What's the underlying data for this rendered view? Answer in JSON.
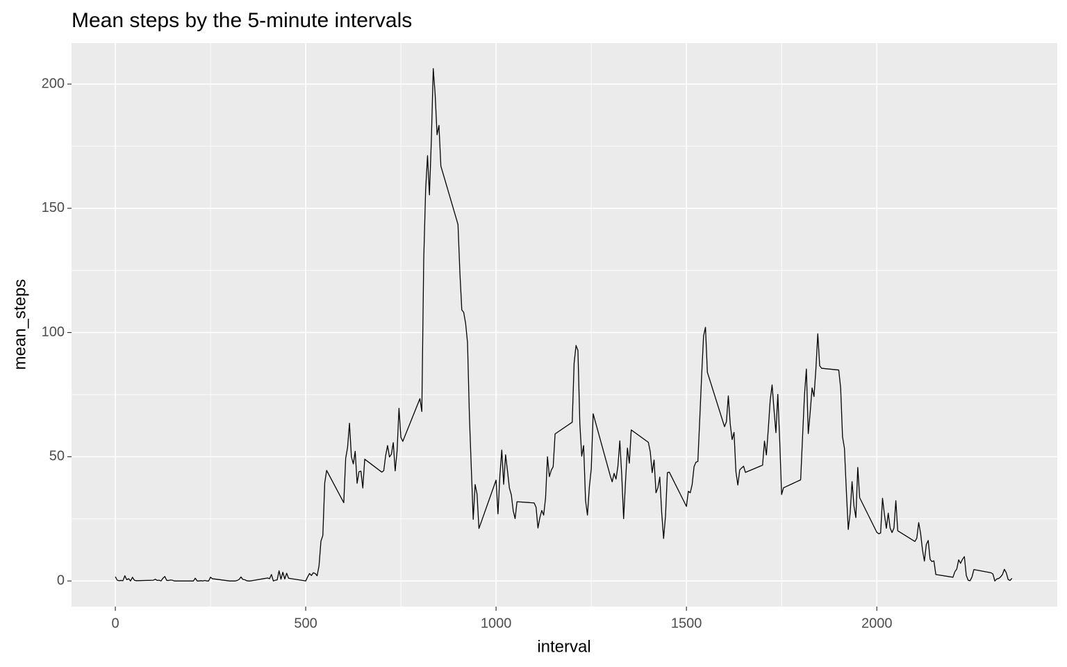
{
  "chart_data": {
    "type": "line",
    "title": "Mean steps by the 5-minute intervals",
    "x_label": "interval",
    "y_label": "mean_steps",
    "xlim": [
      -115,
      2474
    ],
    "ylim": [
      -10.3,
      216.5
    ],
    "xticks": [
      0,
      500,
      1000,
      1500,
      2000
    ],
    "yticks": [
      0,
      50,
      100,
      150,
      200
    ],
    "grid": true,
    "minor_grid": true,
    "series": [
      {
        "name": "mean_steps",
        "color": "#000000",
        "x": [
          0,
          5,
          10,
          15,
          20,
          25,
          30,
          35,
          40,
          45,
          50,
          55,
          100,
          105,
          110,
          115,
          120,
          125,
          130,
          135,
          140,
          145,
          150,
          155,
          200,
          205,
          210,
          215,
          220,
          225,
          230,
          235,
          240,
          245,
          250,
          255,
          300,
          305,
          310,
          315,
          320,
          325,
          330,
          335,
          340,
          345,
          350,
          355,
          400,
          405,
          410,
          415,
          420,
          425,
          430,
          435,
          440,
          445,
          450,
          455,
          500,
          505,
          510,
          515,
          520,
          525,
          530,
          535,
          540,
          545,
          550,
          555,
          600,
          605,
          610,
          615,
          620,
          625,
          630,
          635,
          640,
          645,
          650,
          655,
          700,
          705,
          710,
          715,
          720,
          725,
          730,
          735,
          740,
          745,
          750,
          755,
          800,
          805,
          810,
          815,
          820,
          825,
          830,
          835,
          840,
          845,
          850,
          855,
          900,
          905,
          910,
          915,
          920,
          925,
          930,
          935,
          940,
          945,
          950,
          955,
          1000,
          1005,
          1010,
          1015,
          1020,
          1025,
          1030,
          1035,
          1040,
          1045,
          1050,
          1055,
          1100,
          1105,
          1110,
          1115,
          1120,
          1125,
          1130,
          1135,
          1140,
          1145,
          1150,
          1155,
          1200,
          1205,
          1210,
          1215,
          1220,
          1225,
          1230,
          1235,
          1240,
          1245,
          1250,
          1255,
          1300,
          1305,
          1310,
          1315,
          1320,
          1325,
          1330,
          1335,
          1340,
          1345,
          1350,
          1355,
          1400,
          1405,
          1410,
          1415,
          1420,
          1425,
          1430,
          1435,
          1440,
          1445,
          1450,
          1455,
          1500,
          1505,
          1510,
          1515,
          1520,
          1525,
          1530,
          1535,
          1540,
          1545,
          1550,
          1555,
          1600,
          1605,
          1610,
          1615,
          1620,
          1625,
          1630,
          1635,
          1640,
          1645,
          1650,
          1655,
          1700,
          1705,
          1710,
          1715,
          1720,
          1725,
          1730,
          1735,
          1740,
          1745,
          1750,
          1755,
          1800,
          1805,
          1810,
          1815,
          1820,
          1825,
          1830,
          1835,
          1840,
          1845,
          1850,
          1855,
          1900,
          1905,
          1910,
          1915,
          1920,
          1925,
          1930,
          1935,
          1940,
          1945,
          1950,
          1955,
          2000,
          2005,
          2010,
          2015,
          2020,
          2025,
          2030,
          2035,
          2040,
          2045,
          2050,
          2055,
          2100,
          2105,
          2110,
          2115,
          2120,
          2125,
          2130,
          2135,
          2140,
          2145,
          2150,
          2155,
          2200,
          2205,
          2210,
          2215,
          2220,
          2225,
          2230,
          2235,
          2240,
          2245,
          2250,
          2255,
          2300,
          2305,
          2310,
          2315,
          2320,
          2325,
          2330,
          2335,
          2340,
          2345,
          2350,
          2355
        ],
        "values": [
          1.7,
          0.3,
          0.1,
          0.2,
          0.1,
          2.1,
          0.5,
          0.9,
          0,
          1.5,
          0.3,
          0.1,
          0.3,
          0.7,
          0.2,
          0.3,
          0,
          1.1,
          1.8,
          0.2,
          0.2,
          0.4,
          0.3,
          0,
          0,
          0,
          1.1,
          0,
          0,
          0.1,
          0,
          0.2,
          0,
          0,
          1.5,
          0.9,
          0,
          0,
          0,
          0,
          0.2,
          0.6,
          1.6,
          0.6,
          0.5,
          0.1,
          0,
          0,
          1.2,
          0.9,
          2.6,
          0,
          0.3,
          0.4,
          4.1,
          0.7,
          3.5,
          0.8,
          3.1,
          1.1,
          0,
          1.6,
          3.0,
          2.2,
          3.3,
          3.0,
          2.1,
          6.1,
          16.0,
          18.3,
          39.5,
          44.5,
          31.5,
          49.3,
          53.8,
          63.5,
          50.0,
          47.1,
          52.2,
          39.3,
          44.0,
          44.2,
          37.4,
          49.0,
          43.8,
          44.4,
          50.5,
          54.5,
          49.9,
          51.0,
          55.7,
          44.3,
          52.3,
          69.5,
          57.8,
          56.2,
          73.4,
          68.2,
          129.4,
          157.5,
          171.2,
          155.4,
          177.3,
          206.2,
          195.9,
          179.6,
          183.4,
          167.0,
          143.5,
          124.0,
          109.1,
          108.1,
          103.7,
          96.0,
          66.2,
          45.2,
          24.8,
          38.8,
          35.0,
          21.1,
          40.6,
          27.0,
          42.4,
          52.7,
          38.9,
          50.8,
          44.3,
          37.4,
          34.7,
          28.3,
          25.1,
          31.9,
          31.4,
          29.7,
          21.3,
          25.5,
          28.4,
          26.5,
          33.4,
          50.0,
          42.0,
          44.6,
          46.0,
          59.2,
          63.9,
          87.7,
          94.8,
          92.8,
          63.4,
          50.2,
          54.5,
          32.4,
          26.5,
          37.7,
          45.1,
          67.3,
          42.3,
          39.9,
          43.3,
          41.0,
          46.2,
          56.4,
          42.8,
          25.1,
          40.0,
          53.5,
          47.4,
          60.8,
          55.8,
          52.0,
          43.6,
          48.7,
          35.5,
          37.5,
          41.8,
          27.5,
          17.1,
          26.1,
          43.6,
          43.8,
          30.0,
          36.1,
          35.5,
          38.8,
          46.0,
          47.8,
          48.1,
          65.3,
          82.9,
          98.7,
          102.1,
          84.0,
          62.1,
          64.1,
          74.5,
          63.2,
          56.9,
          59.8,
          43.9,
          38.6,
          44.7,
          45.5,
          46.2,
          43.7,
          46.6,
          56.3,
          50.7,
          61.2,
          72.7,
          78.9,
          68.9,
          59.7,
          75.1,
          56.5,
          34.8,
          37.5,
          40.7,
          58.0,
          74.7,
          85.3,
          59.3,
          67.8,
          77.7,
          74.2,
          85.3,
          99.5,
          86.6,
          85.6,
          84.9,
          77.8,
          58.0,
          53.4,
          36.3,
          20.7,
          27.4,
          40.0,
          30.2,
          25.5,
          45.7,
          33.5,
          19.6,
          19.0,
          19.3,
          33.3,
          26.8,
          21.2,
          27.3,
          21.3,
          19.5,
          21.3,
          32.3,
          20.2,
          15.9,
          17.2,
          23.5,
          19.2,
          12.5,
          8.0,
          14.7,
          16.3,
          8.7,
          7.8,
          8.1,
          2.6,
          1.5,
          3.7,
          4.8,
          8.5,
          7.1,
          8.7,
          9.8,
          2.2,
          0.3,
          0.1,
          1.6,
          4.6,
          3.3,
          2.8,
          0,
          0.8,
          1.0,
          1.6,
          2.6,
          4.7,
          3.3,
          0.6,
          0.2,
          1.1
        ]
      }
    ]
  }
}
